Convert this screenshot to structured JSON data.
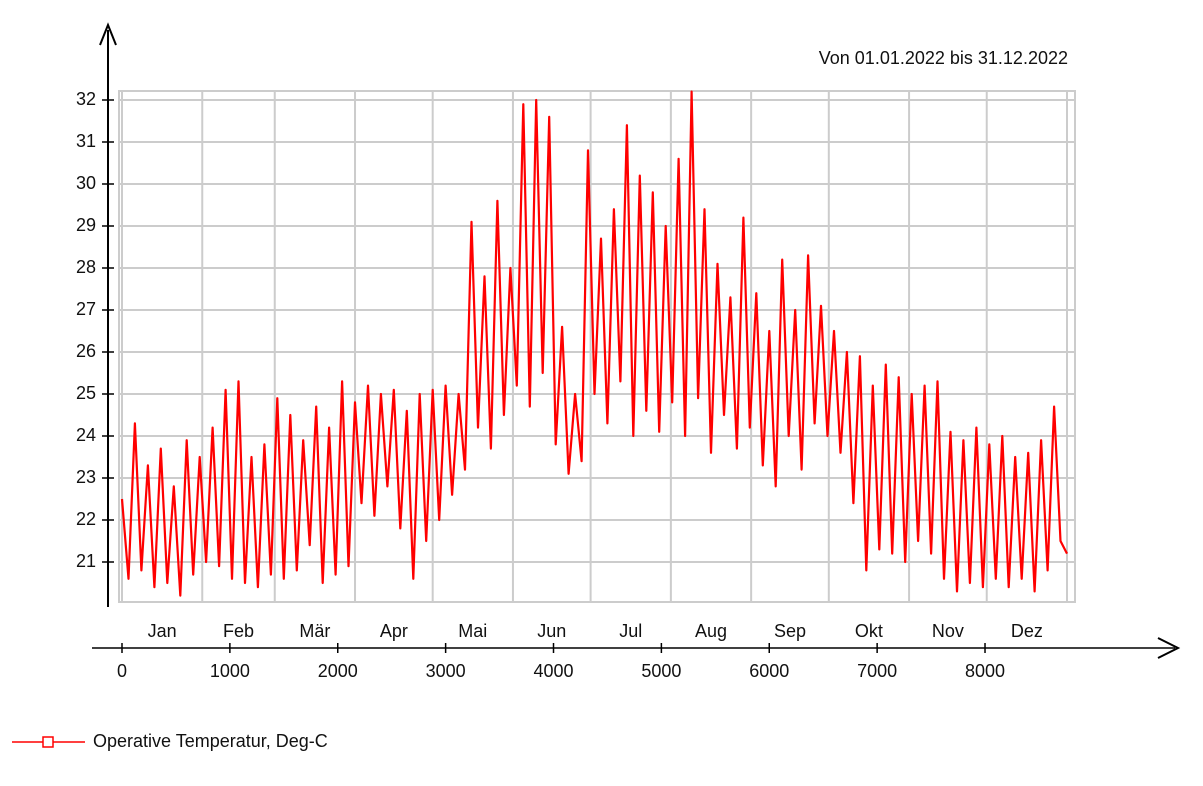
{
  "chart_data": {
    "type": "line",
    "subtitle": "Von 01.01.2022 bis 31.12.2022",
    "x": [
      0,
      60,
      120,
      180,
      240,
      300,
      360,
      420,
      480,
      540,
      600,
      660,
      720,
      780,
      840,
      900,
      960,
      1020,
      1080,
      1140,
      1200,
      1260,
      1320,
      1380,
      1440,
      1500,
      1560,
      1620,
      1680,
      1740,
      1800,
      1860,
      1920,
      1980,
      2040,
      2100,
      2160,
      2220,
      2280,
      2340,
      2400,
      2460,
      2520,
      2580,
      2640,
      2700,
      2760,
      2820,
      2880,
      2940,
      3000,
      3060,
      3120,
      3180,
      3240,
      3300,
      3360,
      3420,
      3480,
      3540,
      3600,
      3660,
      3720,
      3780,
      3840,
      3900,
      3960,
      4020,
      4080,
      4140,
      4200,
      4260,
      4320,
      4380,
      4440,
      4500,
      4560,
      4620,
      4680,
      4740,
      4800,
      4860,
      4920,
      4980,
      5040,
      5100,
      5160,
      5220,
      5280,
      5340,
      5400,
      5460,
      5520,
      5580,
      5640,
      5700,
      5760,
      5820,
      5880,
      5940,
      6000,
      6060,
      6120,
      6180,
      6240,
      6300,
      6360,
      6420,
      6480,
      6540,
      6600,
      6660,
      6720,
      6780,
      6840,
      6900,
      6960,
      7020,
      7080,
      7140,
      7200,
      7260,
      7320,
      7380,
      7440,
      7500,
      7560,
      7620,
      7680,
      7740,
      7800,
      7860,
      7920,
      7980,
      8040,
      8100,
      8160,
      8220,
      8280,
      8340,
      8400,
      8460,
      8520,
      8580,
      8640,
      8700,
      8760
    ],
    "series": [
      {
        "name": "Operative Temperatur, Deg-C",
        "color": "#ff0000",
        "values": [
          22.5,
          20.6,
          24.3,
          20.8,
          23.3,
          20.4,
          23.7,
          20.5,
          22.8,
          20.2,
          23.9,
          20.7,
          23.5,
          21.0,
          24.2,
          20.9,
          25.1,
          20.6,
          25.3,
          20.5,
          23.5,
          20.4,
          23.8,
          20.7,
          24.9,
          20.6,
          24.5,
          20.8,
          23.9,
          21.4,
          24.7,
          20.5,
          24.2,
          20.7,
          25.3,
          20.9,
          24.8,
          22.4,
          25.2,
          22.1,
          25.0,
          22.8,
          25.1,
          21.8,
          24.6,
          20.6,
          25.0,
          21.5,
          25.1,
          22.0,
          25.2,
          22.6,
          25.0,
          23.2,
          29.1,
          24.2,
          27.8,
          23.7,
          29.6,
          24.5,
          28.0,
          25.2,
          31.9,
          24.7,
          32.0,
          25.5,
          31.6,
          23.8,
          26.6,
          23.1,
          25.0,
          23.4,
          30.8,
          25.0,
          28.7,
          24.3,
          29.4,
          25.3,
          31.4,
          24.0,
          30.2,
          24.6,
          29.8,
          24.1,
          29.0,
          24.8,
          30.6,
          24.0,
          32.2,
          24.9,
          29.4,
          23.6,
          28.1,
          24.5,
          27.3,
          23.7,
          29.2,
          24.2,
          27.4,
          23.3,
          26.5,
          22.8,
          28.2,
          24.0,
          27.0,
          23.2,
          28.3,
          24.3,
          27.1,
          24.0,
          26.5,
          23.6,
          26.0,
          22.4,
          25.9,
          20.8,
          25.2,
          21.3,
          25.7,
          21.2,
          25.4,
          21.0,
          25.0,
          21.5,
          25.2,
          21.2,
          25.3,
          20.6,
          24.1,
          20.3,
          23.9,
          20.5,
          24.2,
          20.4,
          23.8,
          20.6,
          24.0,
          20.4,
          23.5,
          20.6,
          23.6,
          20.3,
          23.9,
          20.8,
          24.7,
          21.5,
          21.2
        ]
      }
    ],
    "xlim": [
      0,
      8760
    ],
    "xticks": [
      0,
      1000,
      2000,
      3000,
      4000,
      5000,
      6000,
      7000,
      8000
    ],
    "ylim": [
      20,
      32.2
    ],
    "yticks": [
      21,
      22,
      23,
      24,
      25,
      26,
      27,
      28,
      29,
      30,
      31,
      32
    ],
    "months": [
      "Jan",
      "Feb",
      "Mär",
      "Apr",
      "Mai",
      "Jun",
      "Jul",
      "Aug",
      "Sep",
      "Okt",
      "Nov",
      "Dez"
    ],
    "month_boundaries": [
      0,
      744,
      1416,
      2160,
      2880,
      3624,
      4344,
      5088,
      5832,
      6552,
      7296,
      8016,
      8760
    ],
    "grid": true
  }
}
